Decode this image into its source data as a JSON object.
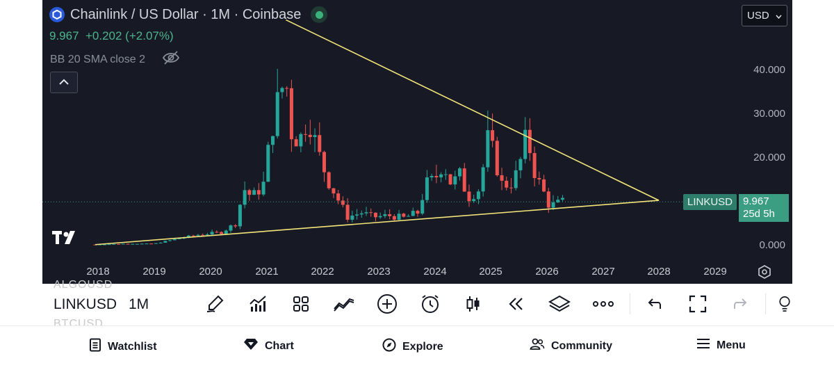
{
  "header": {
    "title": "Chainlink / US Dollar · 1M · Coinbase",
    "price_line": "9.967  +0.202 (+2.07%)",
    "indicator": "BB 20 SMA close 2",
    "logo_icon": "chainlink-logo-icon",
    "live_icon": "market-open-dot-icon",
    "hide_icon": "eye-off-icon",
    "collapse_icon": "chevron-up-icon"
  },
  "currency": {
    "label": "USD"
  },
  "price_axis": {
    "ticks": [
      "40.000",
      "30.000",
      "20.000",
      "10.000",
      "0.000"
    ]
  },
  "time_axis": {
    "ticks": [
      "2018",
      "2019",
      "2020",
      "2021",
      "2022",
      "2023",
      "2024",
      "2025",
      "2026",
      "2027",
      "2028",
      "2029"
    ]
  },
  "last_price": {
    "symbol": "LINKUSD",
    "price": "9.967",
    "countdown": "25d 5h"
  },
  "colors": {
    "up": "#26a69a",
    "down": "#ef5350",
    "trendline": "#f3e57a",
    "background": "#171a25"
  },
  "chart_data": {
    "type": "candlestick",
    "y_range": [
      0,
      52
    ],
    "x_range": [
      2017.4,
      2029.5
    ],
    "trendlines": [
      {
        "from": [
          2021.35,
          51.5
        ],
        "to": [
          2028.0,
          10.3
        ]
      },
      {
        "from": [
          2017.95,
          0.2
        ],
        "to": [
          2028.0,
          10.3
        ]
      }
    ],
    "last_price": 9.967
  },
  "toolbar": {
    "symbol": "LINKUSD",
    "interval": "1M",
    "ghost_above": "ALGOUSD",
    "ghost_below": "BTCUSD",
    "tools": [
      "brush-icon",
      "indicators-icon",
      "templates-icon",
      "compare-icon",
      "add-icon",
      "alert-icon",
      "candle-style-icon",
      "replay-icon",
      "layers-icon",
      "more-icon",
      "undo-icon",
      "fullscreen-icon",
      "redo-icon",
      "bulb-icon"
    ]
  },
  "nav": {
    "watchlist": "Watchlist",
    "chart": "Chart",
    "explore": "Explore",
    "community": "Community",
    "menu": "Menu"
  }
}
